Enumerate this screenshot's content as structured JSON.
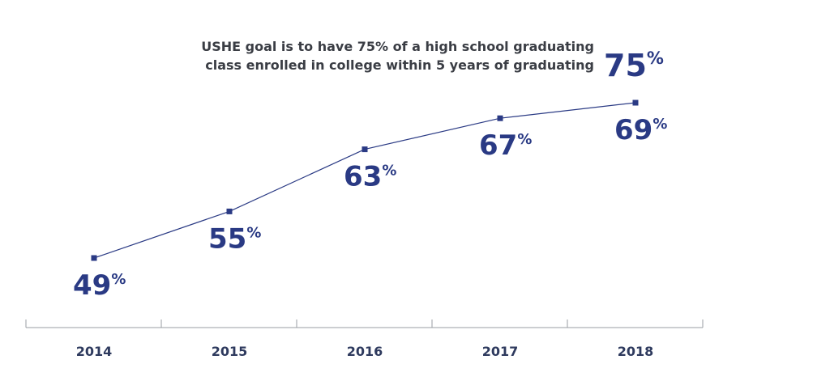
{
  "goal_note": {
    "line1": "USHE goal is to have 75% of a high school graduating",
    "line2": "class enrolled in college within 5 years of graduating",
    "value": "75",
    "unit": "%"
  },
  "chart_data": {
    "type": "line",
    "categories": [
      "2014",
      "2015",
      "2016",
      "2017",
      "2018"
    ],
    "values": [
      49,
      55,
      63,
      67,
      69
    ],
    "labels": [
      "49",
      "55",
      "63",
      "67",
      "69"
    ],
    "unit": "%",
    "ylim": [
      40,
      75
    ],
    "grid": false,
    "series_color": "#2a3a84",
    "axis_color": "#9a9da3"
  }
}
